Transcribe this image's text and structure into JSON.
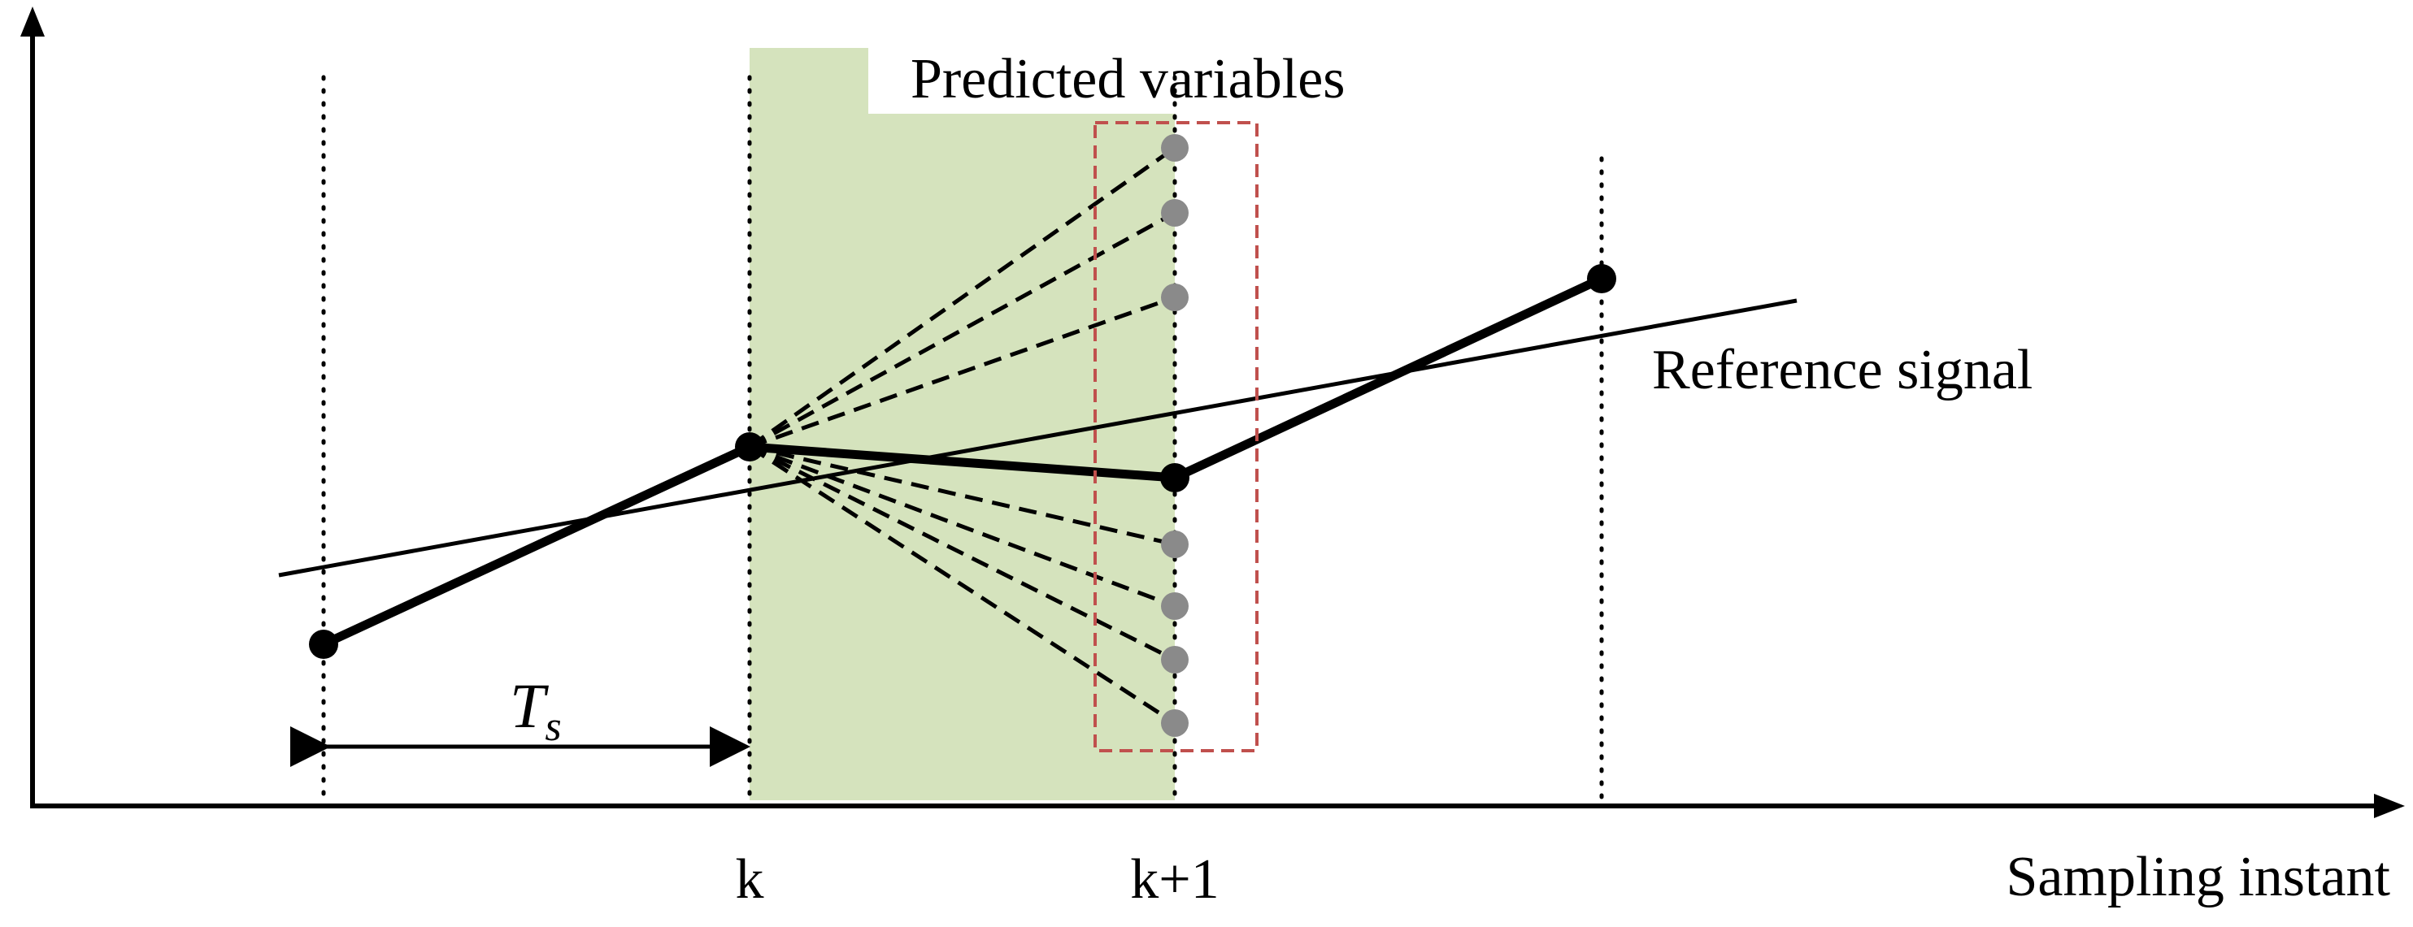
{
  "labels": {
    "predicted_variables": "Predicted variables",
    "reference_signal": "Reference signal",
    "sampling_period_base": "T",
    "sampling_period_sub": "s",
    "tick_k": "k",
    "tick_k_plus_1": "k+1",
    "x_axis": "Sampling instant"
  },
  "colors": {
    "prediction_region": "#d5e3bd",
    "predicted_point": "#8a8a8a",
    "candidate_box": "#c0504d",
    "line": "#000000"
  }
}
